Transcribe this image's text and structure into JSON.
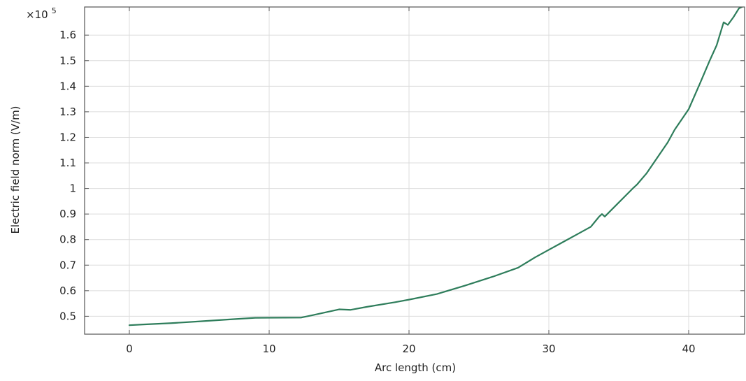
{
  "chart_data": {
    "type": "line",
    "title": "",
    "xlabel": "Arc length (cm)",
    "ylabel": "Electric field norm (V/m)",
    "y_scale_label": {
      "base": "×10",
      "exponent": "5"
    },
    "xlim": [
      -3.2,
      44
    ],
    "ylim": [
      0.43,
      1.71
    ],
    "x_ticks": [
      0,
      10,
      20,
      30,
      40
    ],
    "x_tick_labels": [
      "0",
      "10",
      "20",
      "30",
      "40"
    ],
    "y_ticks": [
      0.5,
      0.6,
      0.7,
      0.8,
      0.9,
      1.0,
      1.1,
      1.2,
      1.3,
      1.4,
      1.5,
      1.6
    ],
    "y_tick_labels": [
      "0.5",
      "0.6",
      "0.7",
      "0.8",
      "0.9",
      "1",
      "1.1",
      "1.2",
      "1.3",
      "1.4",
      "1.5",
      "1.6"
    ],
    "grid": true,
    "series": [
      {
        "color": "#2e7d5b",
        "x": [
          0,
          1,
          3,
          5,
          7,
          9,
          12.3,
          13,
          14,
          15,
          15.8,
          17,
          19,
          20,
          22,
          24,
          26,
          27.8,
          29,
          30,
          31,
          32,
          33,
          33.3,
          33.6,
          33.8,
          34,
          35,
          36,
          36.3,
          37,
          38,
          38.5,
          39,
          40,
          40.8,
          41.5,
          42,
          42.5,
          42.8,
          43.2,
          43.6,
          44
        ],
        "y": [
          0.465,
          0.468,
          0.473,
          0.48,
          0.487,
          0.494,
          0.495,
          0.503,
          0.515,
          0.527,
          0.525,
          0.537,
          0.555,
          0.565,
          0.587,
          0.62,
          0.655,
          0.69,
          0.73,
          0.76,
          0.79,
          0.82,
          0.85,
          0.87,
          0.89,
          0.9,
          0.89,
          0.945,
          1.0,
          1.015,
          1.06,
          1.14,
          1.18,
          1.23,
          1.31,
          1.41,
          1.5,
          1.56,
          1.65,
          1.64,
          1.67,
          1.705,
          1.715
        ]
      }
    ]
  }
}
